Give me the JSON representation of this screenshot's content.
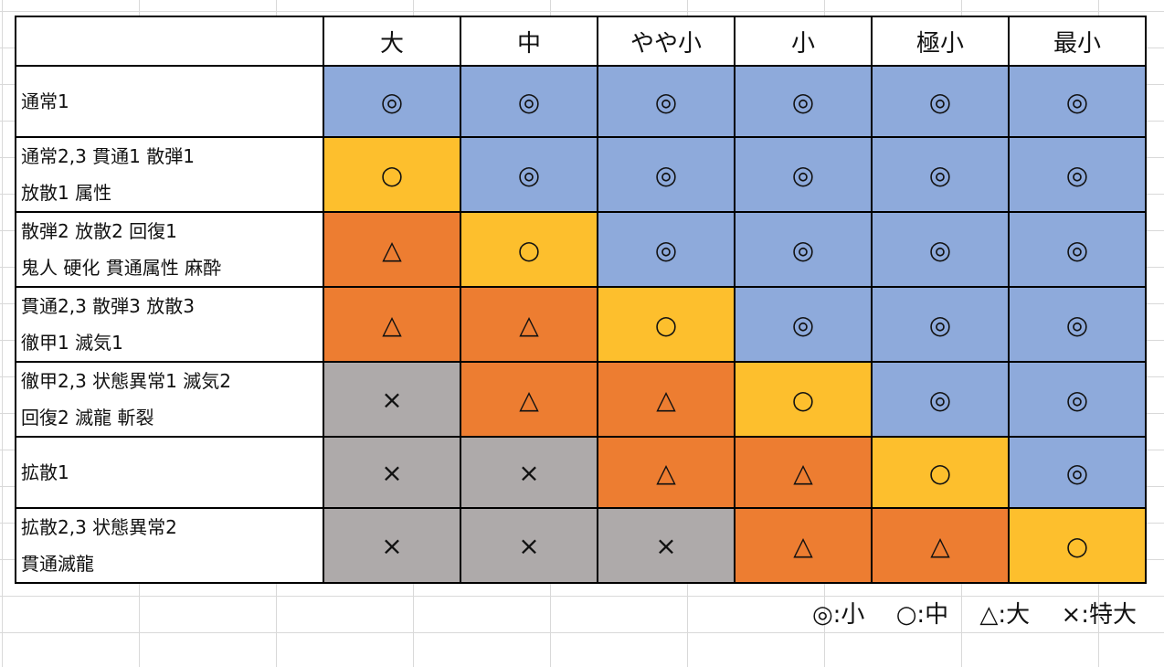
{
  "columns": [
    "大",
    "中",
    "やや小",
    "小",
    "極小",
    "最小"
  ],
  "rows": [
    {
      "lines": [
        "通常1"
      ],
      "cells": [
        "◎",
        "◎",
        "◎",
        "◎",
        "◎",
        "◎"
      ]
    },
    {
      "lines": [
        "通常2,3  貫通1  散弾1",
        "放散1  属性"
      ],
      "cells": [
        "○",
        "◎",
        "◎",
        "◎",
        "◎",
        "◎"
      ]
    },
    {
      "lines": [
        "散弾2  放散2  回復1",
        "鬼人  硬化  貫通属性  麻酔"
      ],
      "cells": [
        "△",
        "○",
        "◎",
        "◎",
        "◎",
        "◎"
      ]
    },
    {
      "lines": [
        "貫通2,3  散弾3  放散3",
        "徹甲1  滅気1"
      ],
      "cells": [
        "△",
        "△",
        "○",
        "◎",
        "◎",
        "◎"
      ]
    },
    {
      "lines": [
        "徹甲2,3  状態異常1  滅気2",
        "回復2  滅龍  斬裂"
      ],
      "cells": [
        "×",
        "△",
        "△",
        "○",
        "◎",
        "◎"
      ]
    },
    {
      "lines": [
        "拡散1"
      ],
      "cells": [
        "×",
        "×",
        "△",
        "△",
        "○",
        "◎"
      ]
    },
    {
      "lines": [
        "拡散2,3  状態異常2",
        "貫通滅龍"
      ],
      "cells": [
        "×",
        "×",
        "×",
        "△",
        "△",
        "○"
      ]
    }
  ],
  "legend": [
    {
      "symbol": "◎",
      "text": "◎:小"
    },
    {
      "symbol": "○",
      "text": "○:中"
    },
    {
      "symbol": "△",
      "text": "△:大"
    },
    {
      "symbol": "×",
      "text": "×:特大"
    }
  ],
  "colors": {
    "◎": "#8eaadb",
    "○": "#fdbf2d",
    "△": "#ed7d31",
    "×": "#aeaaaa"
  }
}
